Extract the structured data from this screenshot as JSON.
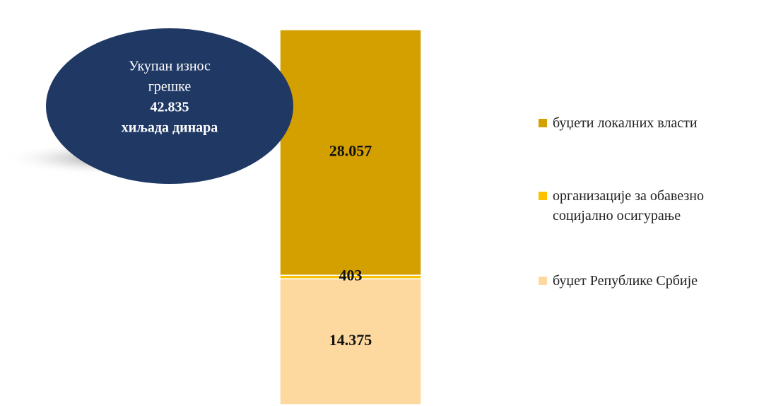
{
  "chart_data": {
    "type": "stacked-bar",
    "categories": [
      null
    ],
    "series": [
      {
        "name": "буџет Републике Србије",
        "color": "#fdd9a0",
        "values": [
          14375
        ],
        "value_labels": [
          "14.375"
        ]
      },
      {
        "name": "организације за обавезно социјално осигурање",
        "color": "#ffc000",
        "values": [
          403
        ],
        "value_labels": [
          "403"
        ]
      },
      {
        "name": "буџети локалних власти",
        "color": "#d3a000",
        "values": [
          28057
        ],
        "value_labels": [
          "28.057"
        ]
      }
    ],
    "ylim": [
      0,
      42835
    ],
    "annotation": {
      "lines": [
        "Укупан износ",
        "грешке",
        "42.835",
        "хиљада динара"
      ],
      "bold_from": 2,
      "color": "#1f3864"
    }
  }
}
